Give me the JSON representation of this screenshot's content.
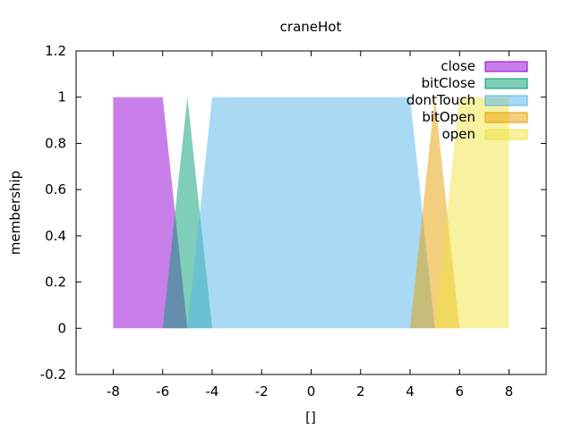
{
  "chart_data": {
    "type": "area",
    "title": "craneHot",
    "xlabel": "[]",
    "ylabel": "membership",
    "xlim": [
      -9.5,
      9.5
    ],
    "ylim": [
      -0.2,
      1.2
    ],
    "xticks": [
      -8,
      -6,
      -4,
      -2,
      0,
      2,
      4,
      6,
      8
    ],
    "yticks": [
      -0.2,
      0,
      0.2,
      0.4,
      0.6,
      0.8,
      1,
      1.2
    ],
    "xtick_labels": [
      "-8",
      "-6",
      "-4",
      "-2",
      "0",
      "2",
      "4",
      "6",
      "8"
    ],
    "ytick_labels": [
      "-0.2",
      "0",
      "0.2",
      "0.4",
      "0.6",
      "0.8",
      "1",
      "1.2"
    ],
    "grid": false,
    "legend_position": "top-right",
    "series": [
      {
        "name": "close",
        "color": "#9400d3",
        "points": [
          [
            -8,
            0
          ],
          [
            -8,
            1
          ],
          [
            -6,
            1
          ],
          [
            -5,
            0
          ]
        ]
      },
      {
        "name": "bitClose",
        "color": "#009e73",
        "points": [
          [
            -6,
            0
          ],
          [
            -5,
            1
          ],
          [
            -4,
            0
          ]
        ]
      },
      {
        "name": "dontTouch",
        "color": "#56b4e9",
        "points": [
          [
            -5,
            0
          ],
          [
            -4,
            1
          ],
          [
            4,
            1
          ],
          [
            5,
            0
          ]
        ]
      },
      {
        "name": "bitOpen",
        "color": "#e69f00",
        "points": [
          [
            4,
            0
          ],
          [
            5,
            1
          ],
          [
            6,
            0
          ]
        ]
      },
      {
        "name": "open",
        "color": "#f0e442",
        "points": [
          [
            5,
            0
          ],
          [
            6,
            1
          ],
          [
            8,
            1
          ],
          [
            8,
            0
          ]
        ]
      }
    ]
  }
}
